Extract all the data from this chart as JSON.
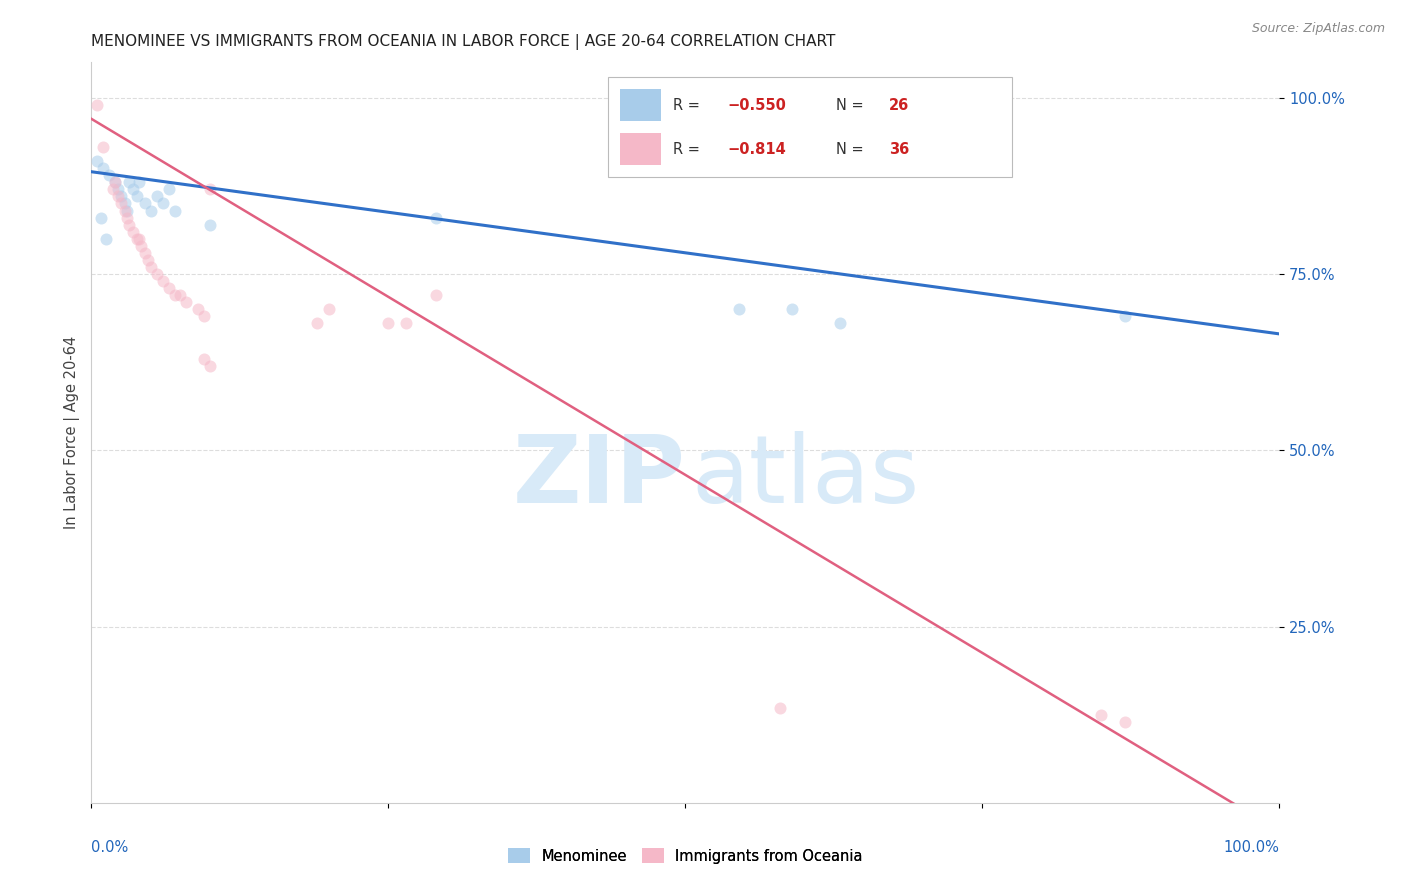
{
  "title": "MENOMINEE VS IMMIGRANTS FROM OCEANIA IN LABOR FORCE | AGE 20-64 CORRELATION CHART",
  "source": "Source: ZipAtlas.com",
  "ylabel": "In Labor Force | Age 20-64",
  "ytick_labels": [
    "100.0%",
    "75.0%",
    "50.0%",
    "25.0%"
  ],
  "ytick_values": [
    1.0,
    0.75,
    0.5,
    0.25
  ],
  "xlim": [
    0.0,
    1.0
  ],
  "ylim": [
    0.0,
    1.05
  ],
  "blue_scatter": [
    [
      0.005,
      0.91
    ],
    [
      0.01,
      0.9
    ],
    [
      0.015,
      0.89
    ],
    [
      0.02,
      0.88
    ],
    [
      0.022,
      0.87
    ],
    [
      0.025,
      0.86
    ],
    [
      0.028,
      0.85
    ],
    [
      0.03,
      0.84
    ],
    [
      0.032,
      0.88
    ],
    [
      0.035,
      0.87
    ],
    [
      0.038,
      0.86
    ],
    [
      0.04,
      0.88
    ],
    [
      0.045,
      0.85
    ],
    [
      0.05,
      0.84
    ],
    [
      0.055,
      0.86
    ],
    [
      0.06,
      0.85
    ],
    [
      0.065,
      0.87
    ],
    [
      0.07,
      0.84
    ],
    [
      0.008,
      0.83
    ],
    [
      0.012,
      0.8
    ],
    [
      0.1,
      0.82
    ],
    [
      0.29,
      0.83
    ],
    [
      0.545,
      0.7
    ],
    [
      0.59,
      0.7
    ],
    [
      0.63,
      0.68
    ],
    [
      0.87,
      0.69
    ]
  ],
  "pink_scatter": [
    [
      0.005,
      0.99
    ],
    [
      0.01,
      0.93
    ],
    [
      0.018,
      0.87
    ],
    [
      0.02,
      0.88
    ],
    [
      0.022,
      0.86
    ],
    [
      0.025,
      0.85
    ],
    [
      0.028,
      0.84
    ],
    [
      0.03,
      0.83
    ],
    [
      0.032,
      0.82
    ],
    [
      0.035,
      0.81
    ],
    [
      0.038,
      0.8
    ],
    [
      0.04,
      0.8
    ],
    [
      0.042,
      0.79
    ],
    [
      0.045,
      0.78
    ],
    [
      0.048,
      0.77
    ],
    [
      0.05,
      0.76
    ],
    [
      0.055,
      0.75
    ],
    [
      0.06,
      0.74
    ],
    [
      0.065,
      0.73
    ],
    [
      0.07,
      0.72
    ],
    [
      0.075,
      0.72
    ],
    [
      0.08,
      0.71
    ],
    [
      0.09,
      0.7
    ],
    [
      0.095,
      0.69
    ],
    [
      0.1,
      0.87
    ],
    [
      0.19,
      0.68
    ],
    [
      0.2,
      0.7
    ],
    [
      0.25,
      0.68
    ],
    [
      0.265,
      0.68
    ],
    [
      0.29,
      0.72
    ],
    [
      0.095,
      0.63
    ],
    [
      0.1,
      0.62
    ],
    [
      0.58,
      0.135
    ],
    [
      0.85,
      0.125
    ],
    [
      0.87,
      0.115
    ]
  ],
  "blue_color": "#A8CCEA",
  "pink_color": "#F5B8C8",
  "blue_line_color": "#3070C8",
  "pink_line_color": "#E06080",
  "marker_size": 75,
  "alpha": 0.55,
  "background_color": "#FFFFFF",
  "watermark_zip": "ZIP",
  "watermark_atlas": "atlas",
  "watermark_color": "#D8EAF8",
  "grid_color": "#DDDDDD",
  "title_fontsize": 11,
  "tick_label_color": "#2266BB",
  "ylabel_color": "#444444",
  "legend_r_color": "#CC2222",
  "legend_n_color": "#CC2222"
}
